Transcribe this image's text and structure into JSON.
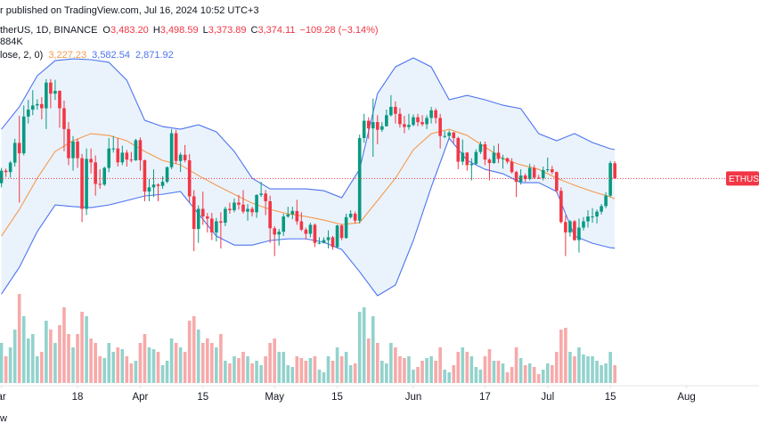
{
  "header": {
    "publisher": "r published on TradingView.com, Jul 16, 2024 10:52 UTC+3",
    "symbol": "therUS, 1D, BINANCE",
    "quote": [
      {
        "key": "O",
        "value": "3,483.20"
      },
      {
        "key": "H",
        "value": "3,498.59"
      },
      {
        "key": "L",
        "value": "3,373.89"
      },
      {
        "key": "C",
        "value": "3,374.11"
      }
    ],
    "change": "−109.28 (−3.14%)",
    "volume": "884K",
    "indicator": "lose, 2, 0)",
    "indicator_values": [
      "3,227.23",
      "3,582.54",
      "2,871.92"
    ],
    "footer": "w"
  },
  "chart_data": {
    "type": "candlestick",
    "xlim": [
      -0.32,
      169.2
    ],
    "ylim": [
      1900,
      4660
    ],
    "xticks": [
      {
        "value": 0,
        "label": "ar"
      },
      {
        "value": 17,
        "label": "18"
      },
      {
        "value": 31,
        "label": "Apr"
      },
      {
        "value": 45,
        "label": "15"
      },
      {
        "value": 61,
        "label": "May"
      },
      {
        "value": 75,
        "label": "15"
      },
      {
        "value": 92,
        "label": "Jun"
      },
      {
        "value": 108,
        "label": "17"
      },
      {
        "value": 122,
        "label": "Jul"
      },
      {
        "value": 136,
        "label": "15"
      },
      {
        "value": 153,
        "label": "Aug"
      }
    ],
    "series": [
      {
        "name": "ETHUSD",
        "up_color": "#089981",
        "down_color": "#f23645",
        "values": [
          [
            3340,
            3450,
            3310,
            3430
          ],
          [
            3430,
            3445,
            3385,
            3420
          ],
          [
            3420,
            3500,
            3380,
            3488
          ],
          [
            3488,
            3660,
            3460,
            3630
          ],
          [
            3630,
            3825,
            3200,
            3555
          ],
          [
            3555,
            3900,
            3540,
            3820
          ],
          [
            3820,
            3940,
            3770,
            3870
          ],
          [
            3870,
            4010,
            3830,
            3900
          ],
          [
            3900,
            3945,
            3870,
            3910
          ],
          [
            3910,
            3960,
            3800,
            3880
          ],
          [
            3880,
            4090,
            3730,
            4065
          ],
          [
            4065,
            4090,
            3880,
            3985
          ],
          [
            3985,
            4085,
            3940,
            4005
          ],
          [
            4005,
            4010,
            3740,
            3880
          ],
          [
            3880,
            3935,
            3570,
            3730
          ],
          [
            3730,
            3780,
            3470,
            3520
          ],
          [
            3520,
            3680,
            3430,
            3640
          ],
          [
            3640,
            3660,
            3450,
            3520
          ],
          [
            3520,
            3550,
            3060,
            3155
          ],
          [
            3155,
            3590,
            3110,
            3515
          ],
          [
            3515,
            3590,
            3410,
            3490
          ],
          [
            3490,
            3540,
            3250,
            3335
          ],
          [
            3335,
            3440,
            3300,
            3330
          ],
          [
            3330,
            3460,
            3320,
            3450
          ],
          [
            3450,
            3665,
            3420,
            3590
          ],
          [
            3590,
            3680,
            3560,
            3590
          ],
          [
            3590,
            3665,
            3460,
            3490
          ],
          [
            3490,
            3610,
            3470,
            3560
          ],
          [
            3560,
            3580,
            3460,
            3510
          ],
          [
            3510,
            3565,
            3490,
            3505
          ],
          [
            3505,
            3660,
            3500,
            3650
          ],
          [
            3650,
            3670,
            3430,
            3505
          ],
          [
            3505,
            3510,
            3210,
            3280
          ],
          [
            3280,
            3370,
            3210,
            3310
          ],
          [
            3310,
            3440,
            3240,
            3330
          ],
          [
            3330,
            3340,
            3210,
            3320
          ],
          [
            3320,
            3390,
            3300,
            3350
          ],
          [
            3350,
            3460,
            3340,
            3455
          ],
          [
            3455,
            3730,
            3440,
            3700
          ],
          [
            3700,
            3725,
            3480,
            3500
          ],
          [
            3500,
            3560,
            3420,
            3545
          ],
          [
            3545,
            3615,
            3490,
            3505
          ],
          [
            3505,
            3550,
            3200,
            3245
          ],
          [
            3245,
            3290,
            2850,
            3010
          ],
          [
            3010,
            3180,
            2910,
            3155
          ],
          [
            3155,
            3280,
            3040,
            3100
          ],
          [
            3100,
            3125,
            2985,
            3085
          ],
          [
            3085,
            3125,
            2930,
            2985
          ],
          [
            2985,
            3090,
            2920,
            3065
          ],
          [
            3065,
            3130,
            2870,
            3055
          ],
          [
            3055,
            3170,
            3030,
            3155
          ],
          [
            3155,
            3200,
            3120,
            3145
          ],
          [
            3145,
            3230,
            3130,
            3200
          ],
          [
            3200,
            3255,
            3150,
            3185
          ],
          [
            3185,
            3290,
            3120,
            3135
          ],
          [
            3135,
            3190,
            3070,
            3155
          ],
          [
            3155,
            3170,
            3100,
            3130
          ],
          [
            3130,
            3260,
            3090,
            3255
          ],
          [
            3255,
            3350,
            3240,
            3265
          ],
          [
            3265,
            3290,
            3110,
            3210
          ],
          [
            3210,
            3250,
            2910,
            3015
          ],
          [
            3015,
            3030,
            2815,
            2970
          ],
          [
            2970,
            3010,
            2890,
            2990
          ],
          [
            2990,
            3120,
            2960,
            3100
          ],
          [
            3100,
            3170,
            3090,
            3115
          ],
          [
            3115,
            3170,
            3080,
            3140
          ],
          [
            3140,
            3220,
            3040,
            3065
          ],
          [
            3065,
            3130,
            2995,
            3005
          ],
          [
            3005,
            3020,
            2935,
            2975
          ],
          [
            2975,
            3055,
            2950,
            3040
          ],
          [
            3040,
            3050,
            2880,
            2910
          ],
          [
            2910,
            2950,
            2900,
            2910
          ],
          [
            2910,
            2950,
            2905,
            2930
          ],
          [
            2930,
            3000,
            2870,
            2950
          ],
          [
            2950,
            2960,
            2860,
            2880
          ],
          [
            2880,
            3040,
            2870,
            3035
          ],
          [
            3035,
            3045,
            2930,
            2945
          ],
          [
            2945,
            3120,
            2940,
            3095
          ],
          [
            3095,
            3145,
            3085,
            3120
          ],
          [
            3120,
            3135,
            3050,
            3070
          ],
          [
            3070,
            3690,
            3050,
            3665
          ],
          [
            3665,
            3840,
            3630,
            3790
          ],
          [
            3790,
            3815,
            3660,
            3735
          ],
          [
            3735,
            3950,
            3530,
            3780
          ],
          [
            3780,
            3830,
            3620,
            3725
          ],
          [
            3725,
            3780,
            3710,
            3750
          ],
          [
            3750,
            3870,
            3750,
            3830
          ],
          [
            3830,
            3975,
            3820,
            3890
          ],
          [
            3890,
            3930,
            3770,
            3840
          ],
          [
            3840,
            3880,
            3740,
            3765
          ],
          [
            3765,
            3825,
            3700,
            3745
          ],
          [
            3745,
            3840,
            3725,
            3760
          ],
          [
            3760,
            3835,
            3750,
            3815
          ],
          [
            3815,
            3840,
            3750,
            3780
          ],
          [
            3780,
            3830,
            3750,
            3765
          ],
          [
            3765,
            3830,
            3730,
            3810
          ],
          [
            3810,
            3890,
            3770,
            3865
          ],
          [
            3865,
            3880,
            3770,
            3810
          ],
          [
            3810,
            3840,
            3590,
            3680
          ],
          [
            3680,
            3715,
            3665,
            3680
          ],
          [
            3680,
            3720,
            3660,
            3705
          ],
          [
            3705,
            3710,
            3630,
            3665
          ],
          [
            3665,
            3675,
            3440,
            3495
          ],
          [
            3495,
            3655,
            3470,
            3560
          ],
          [
            3560,
            3565,
            3430,
            3470
          ],
          [
            3470,
            3520,
            3360,
            3480
          ],
          [
            3480,
            3585,
            3470,
            3565
          ],
          [
            3565,
            3640,
            3550,
            3620
          ],
          [
            3620,
            3640,
            3470,
            3510
          ],
          [
            3510,
            3520,
            3360,
            3485
          ],
          [
            3485,
            3610,
            3480,
            3560
          ],
          [
            3560,
            3625,
            3485,
            3515
          ],
          [
            3515,
            3545,
            3445,
            3520
          ],
          [
            3520,
            3525,
            3480,
            3495
          ],
          [
            3495,
            3520,
            3410,
            3420
          ],
          [
            3420,
            3430,
            3240,
            3350
          ],
          [
            3350,
            3440,
            3330,
            3395
          ],
          [
            3395,
            3410,
            3350,
            3370
          ],
          [
            3370,
            3480,
            3360,
            3450
          ],
          [
            3450,
            3470,
            3370,
            3380
          ],
          [
            3380,
            3400,
            3370,
            3375
          ],
          [
            3375,
            3460,
            3360,
            3435
          ],
          [
            3435,
            3525,
            3420,
            3440
          ],
          [
            3440,
            3465,
            3405,
            3420
          ],
          [
            3420,
            3425,
            3270,
            3285
          ],
          [
            3285,
            3310,
            3050,
            3060
          ],
          [
            3060,
            3110,
            2815,
            2985
          ],
          [
            2985,
            3075,
            2955,
            3065
          ],
          [
            3065,
            3075,
            2925,
            2930
          ],
          [
            2930,
            3085,
            2840,
            3020
          ],
          [
            3020,
            3095,
            3000,
            3065
          ],
          [
            3065,
            3145,
            3020,
            3100
          ],
          [
            3100,
            3160,
            3055,
            3100
          ],
          [
            3100,
            3150,
            3050,
            3135
          ],
          [
            3135,
            3190,
            3115,
            3175
          ],
          [
            3175,
            3275,
            3160,
            3250
          ],
          [
            3250,
            3500,
            3240,
            3485
          ],
          [
            3483.2,
            3498.59,
            3373.89,
            3374.11
          ]
        ]
      }
    ],
    "volume": {
      "ylim": [
        0,
        4400
      ],
      "up_color": "#92d2cc",
      "down_color": "#f7a9a9",
      "values": [
        1980,
        1320,
        1760,
        2640,
        4400,
        3300,
        2200,
        2420,
        1320,
        1540,
        3080,
        2640,
        1980,
        2860,
        3740,
        2420,
        1760,
        2420,
        3520,
        3300,
        2200,
        1980,
        1320,
        1232,
        1980,
        1540,
        1760,
        1672,
        1320,
        968,
        1100,
        1980,
        2420,
        1760,
        1672,
        1540,
        880,
        1100,
        2200,
        1980,
        1760,
        1540,
        3080,
        3300,
        2640,
        1980,
        2200,
        1980,
        1760,
        2420,
        1100,
        968,
        1320,
        1232,
        1540,
        1320,
        968,
        1100,
        880,
        1320,
        1980,
        2200,
        1540,
        1540,
        880,
        792,
        1320,
        1232,
        1100,
        1232,
        1320,
        660,
        528,
        1320,
        1100,
        1760,
        1320,
        1540,
        880,
        968,
        3520,
        3740,
        2200,
        3300,
        1980,
        1100,
        968,
        1980,
        1760,
        1320,
        1232,
        1320,
        660,
        792,
        1100,
        1232,
        1320,
        1100,
        1760,
        660,
        528,
        880,
        1540,
        1760,
        1540,
        1320,
        792,
        660,
        1320,
        1672,
        1100,
        1100,
        968,
        528,
        792,
        1760,
        1232,
        880,
        968,
        792,
        440,
        660,
        968,
        880,
        1540,
        2640,
        2728,
        1540,
        1320,
        1760,
        1408,
        1320,
        1320,
        1100,
        880,
        968,
        1540,
        884
      ]
    },
    "bands": {
      "upper_color": "#4d74f0",
      "middle_color": "#f59a4f",
      "fill": "#eaf3fc",
      "x": [
        0,
        4,
        8,
        12,
        16,
        20,
        24,
        28,
        32,
        36,
        40,
        44,
        48,
        52,
        56,
        60,
        64,
        68,
        72,
        76,
        80,
        84,
        88,
        92,
        96,
        100,
        104,
        108,
        112,
        116,
        120,
        124,
        128,
        132,
        136,
        137
      ],
      "upper": [
        3729,
        3890,
        4114,
        4223,
        4236,
        4230,
        4211,
        4082,
        3793,
        3748,
        3729,
        3761,
        3710,
        3569,
        3376,
        3299,
        3299,
        3299,
        3286,
        3235,
        3440,
        3986,
        4178,
        4243,
        4178,
        3941,
        3973,
        3941,
        3902,
        3877,
        3697,
        3646,
        3697,
        3633,
        3588,
        3582.54
      ],
      "middle": [
        2959,
        3151,
        3376,
        3569,
        3646,
        3697,
        3684,
        3646,
        3569,
        3504,
        3472,
        3395,
        3325,
        3260,
        3196,
        3151,
        3119,
        3100,
        3074,
        3042,
        3055,
        3215,
        3376,
        3581,
        3697,
        3729,
        3684,
        3601,
        3517,
        3472,
        3440,
        3376,
        3325,
        3280,
        3241,
        3227.23
      ],
      "lower": [
        2541,
        2734,
        2991,
        3183,
        3171,
        3164,
        3183,
        3215,
        3248,
        3260,
        3280,
        3119,
        2959,
        2894,
        2894,
        2927,
        2939,
        2939,
        2914,
        2862,
        2702,
        2529,
        2606,
        2927,
        3312,
        3665,
        3504,
        3440,
        3408,
        3344,
        3344,
        3280,
        2959,
        2907,
        2875,
        2871.92
      ]
    }
  }
}
